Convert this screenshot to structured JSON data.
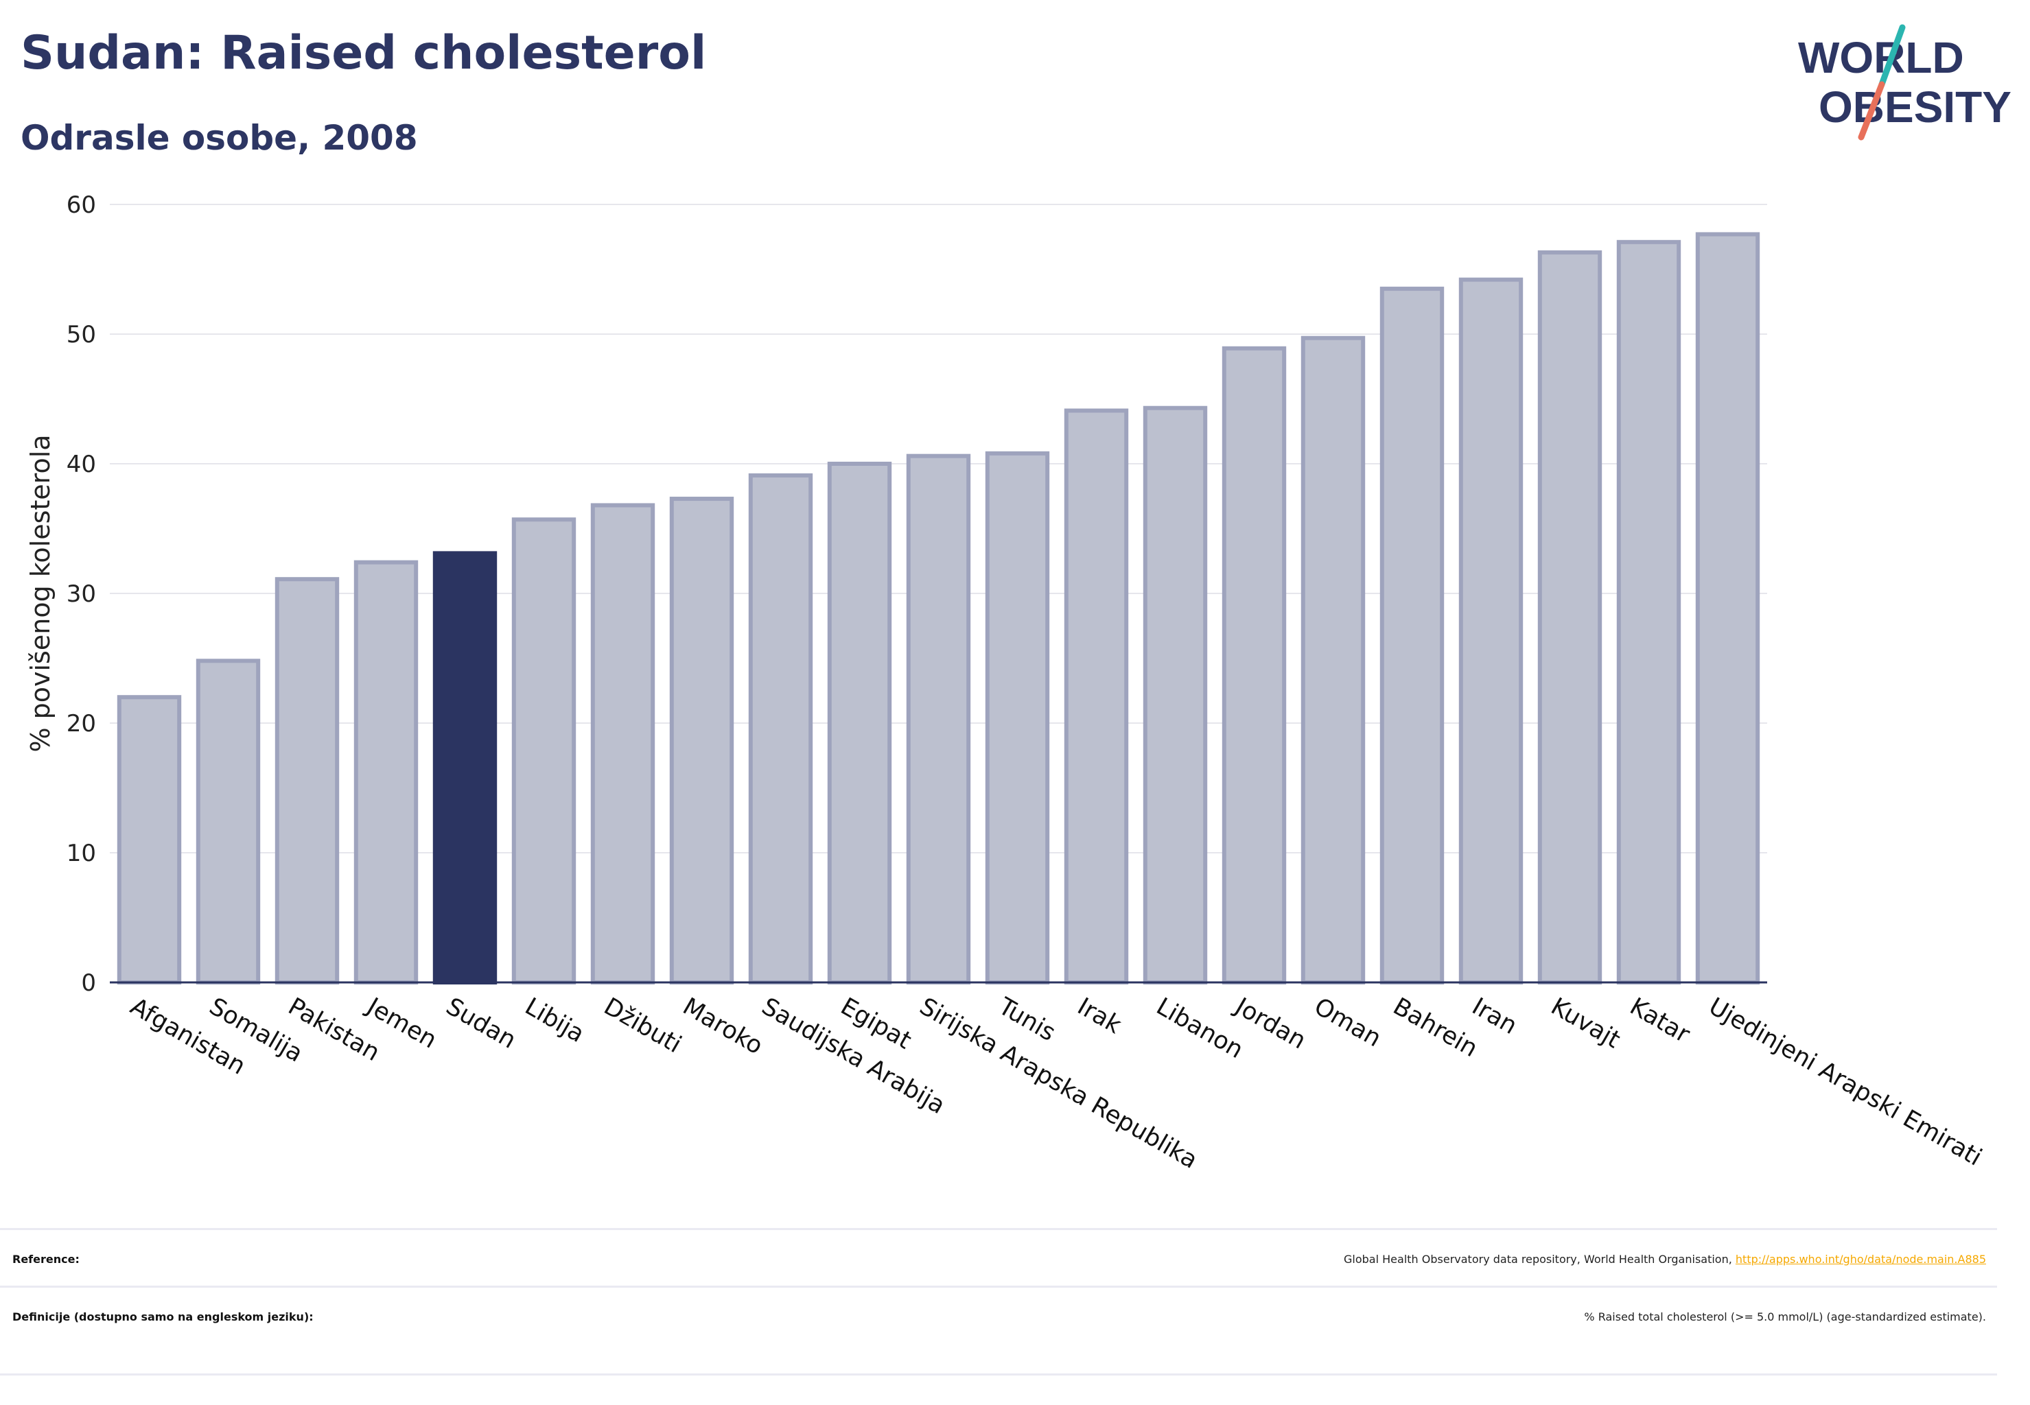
{
  "header": {
    "title": "Sudan: Raised cholesterol",
    "subtitle": "Odrasle osobe, 2008"
  },
  "logo": {
    "line1": "WORLD",
    "line2": "OBESITY",
    "colors": {
      "text": "#2d3663",
      "slash_top": "#2bb5b0",
      "slash_bottom": "#e8705a"
    }
  },
  "chart_data": {
    "type": "bar",
    "ylabel": "% povišenog kolesterola",
    "ylim": [
      0,
      60
    ],
    "yticks": [
      0,
      10,
      20,
      30,
      40,
      50,
      60
    ],
    "grid": true,
    "highlight": "Sudan",
    "colors": {
      "bar": "#bcc0cf",
      "bar_border": "#9ea3bd",
      "highlight": "#2b3461",
      "axis": "#2b3461",
      "grid": "#e6e6ec"
    },
    "categories": [
      "Afganistan",
      "Somalija",
      "Pakistan",
      "Jemen",
      "Sudan",
      "Libija",
      "Džibuti",
      "Maroko",
      "Saudijska Arabija",
      "Egipat",
      "Sirijska Arapska Republika",
      "Tunis",
      "Irak",
      "Libanon",
      "Jordan",
      "Oman",
      "Bahrein",
      "Iran",
      "Kuvajt",
      "Katar",
      "Ujedinjeni Arapski Emirati"
    ],
    "values": [
      22.0,
      24.8,
      31.1,
      32.4,
      33.1,
      35.7,
      36.8,
      37.3,
      39.1,
      40.0,
      40.6,
      40.8,
      44.1,
      44.3,
      48.9,
      49.7,
      53.5,
      54.2,
      56.3,
      57.1,
      57.7
    ]
  },
  "footer": {
    "reference_label": "Reference:",
    "reference_text": "Global Health Observatory data repository, World Health Organisation, ",
    "reference_link": "http://apps.who.int/gho/data/node.main.A885",
    "definitions_label": "Definicije (dostupno samo na engleskom jeziku):",
    "definitions_text": "% Raised total cholesterol (>= 5.0 mmol/L) (age-standardized estimate)."
  }
}
